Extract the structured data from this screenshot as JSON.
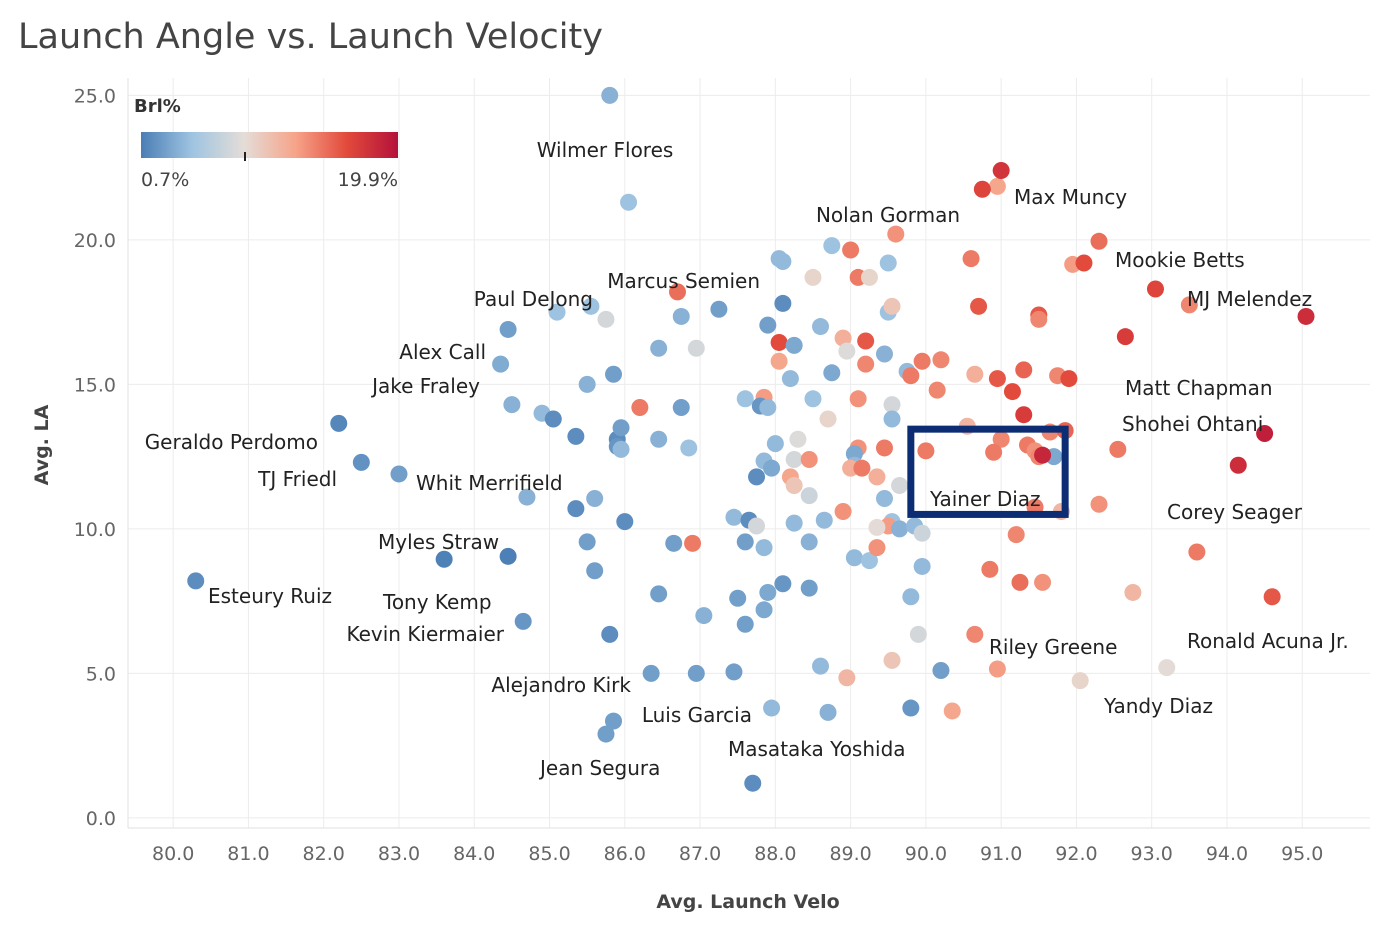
{
  "chart_data": {
    "type": "scatter",
    "title": "Launch Angle vs. Launch Velocity",
    "xlabel": "Avg. Launch Velo",
    "ylabel": "Avg. LA",
    "xlim": [
      79.4,
      95.9
    ],
    "ylim": [
      -0.35,
      25.6
    ],
    "x_ticks": [
      "80.0",
      "81.0",
      "82.0",
      "83.0",
      "84.0",
      "85.0",
      "86.0",
      "87.0",
      "88.0",
      "89.0",
      "90.0",
      "91.0",
      "92.0",
      "93.0",
      "94.0",
      "95.0"
    ],
    "y_ticks": [
      "0.0",
      "5.0",
      "10.0",
      "15.0",
      "20.0",
      "25.0"
    ],
    "grid": true,
    "color_legend": {
      "title": "Brl%",
      "min_label": "0.7%",
      "max_label": "19.9%",
      "min": 0.7,
      "max": 19.9,
      "placement": "top-left",
      "colors": [
        "#4a7eb5",
        "#9fc4e1",
        "#e4ddd8",
        "#f6a48a",
        "#e24a3b",
        "#b4123a"
      ]
    },
    "highlight": {
      "label": "Yainer Diaz",
      "x_range": [
        89.8,
        91.85
      ],
      "y_range": [
        10.5,
        13.45
      ],
      "color": "#0c2c74"
    },
    "labeled_players": [
      {
        "name": "Wilmer Flores",
        "x": 85.8,
        "y": 25.0,
        "brl": 3.5
      },
      {
        "name": "Max Muncy",
        "x": 91.0,
        "y": 22.4,
        "brl": 17.5
      },
      {
        "name": "Nolan Gorman",
        "x": 90.75,
        "y": 21.75,
        "brl": 16.5
      },
      {
        "name": "Mookie Betts",
        "x": 92.3,
        "y": 19.95,
        "brl": 14.5
      },
      {
        "name": "MJ Melendez",
        "x": 93.05,
        "y": 18.3,
        "brl": 16.5
      },
      {
        "name": "Marcus Semien",
        "x": 88.05,
        "y": 19.35,
        "brl": 4.0
      },
      {
        "name": "Paul DeJong",
        "x": 86.7,
        "y": 18.2,
        "brl": 14.5
      },
      {
        "name": "Alex Call",
        "x": 84.45,
        "y": 16.9,
        "brl": 2.5
      },
      {
        "name": "Jake Fraley",
        "x": 84.35,
        "y": 15.7,
        "brl": 3.2
      },
      {
        "name": "Matt Chapman",
        "x": 91.9,
        "y": 15.2,
        "brl": 16.0
      },
      {
        "name": "Shohei Ohtani",
        "x": 94.5,
        "y": 13.3,
        "brl": 19.0
      },
      {
        "name": "Geraldo Perdomo",
        "x": 82.2,
        "y": 13.65,
        "brl": 1.2
      },
      {
        "name": "TJ Friedl",
        "x": 82.5,
        "y": 12.3,
        "brl": 1.8
      },
      {
        "name": "Whit Merrifield",
        "x": 83.0,
        "y": 11.9,
        "brl": 2.5
      },
      {
        "name": "Yainer Diaz",
        "x": 91.55,
        "y": 12.55,
        "brl": 18.5
      },
      {
        "name": "Corey Seager",
        "x": 94.15,
        "y": 12.2,
        "brl": 18.0
      },
      {
        "name": "Myles Straw",
        "x": 84.45,
        "y": 9.05,
        "brl": 0.8
      },
      {
        "name": "Esteury Ruiz",
        "x": 80.3,
        "y": 8.2,
        "brl": 1.5
      },
      {
        "name": "Tony Kemp",
        "x": 83.6,
        "y": 8.95,
        "brl": 0.9
      },
      {
        "name": "Kevin Kiermaier",
        "x": 84.65,
        "y": 6.8,
        "brl": 2.0
      },
      {
        "name": "Riley Greene",
        "x": 90.65,
        "y": 6.35,
        "brl": 13.5
      },
      {
        "name": "Ronald Acuna Jr.",
        "x": 94.6,
        "y": 7.65,
        "brl": 15.5
      },
      {
        "name": "Alejandro Kirk",
        "x": 86.35,
        "y": 5.0,
        "brl": 2.5
      },
      {
        "name": "Yandy Diaz",
        "x": 93.2,
        "y": 5.2,
        "brl": 8.5
      },
      {
        "name": "Luis Garcia",
        "x": 87.95,
        "y": 3.8,
        "brl": 4.0
      },
      {
        "name": "Masataka Yoshida",
        "x": 88.7,
        "y": 3.65,
        "brl": 3.5
      },
      {
        "name": "Jean Segura",
        "x": 85.75,
        "y": 2.9,
        "brl": 2.5
      }
    ],
    "points": [
      [
        86.05,
        21.3,
        4.5
      ],
      [
        90.95,
        21.85,
        12
      ],
      [
        89.6,
        20.2,
        13
      ],
      [
        88.75,
        19.8,
        4.5
      ],
      [
        89.0,
        19.65,
        14
      ],
      [
        88.1,
        19.25,
        4
      ],
      [
        89.5,
        19.2,
        4.5
      ],
      [
        90.6,
        19.35,
        14
      ],
      [
        91.95,
        19.15,
        12.5
      ],
      [
        92.1,
        19.2,
        16
      ],
      [
        88.5,
        18.7,
        9
      ],
      [
        89.1,
        18.7,
        14
      ],
      [
        89.25,
        18.7,
        9
      ],
      [
        93.5,
        17.75,
        13.5
      ],
      [
        95.05,
        17.35,
        18
      ],
      [
        87.25,
        17.6,
        2.5
      ],
      [
        88.1,
        17.8,
        1.5
      ],
      [
        85.1,
        17.5,
        4.5
      ],
      [
        85.55,
        17.7,
        4.5
      ],
      [
        85.75,
        17.25,
        7.5
      ],
      [
        86.75,
        17.35,
        3.5
      ],
      [
        89.5,
        17.5,
        4.5
      ],
      [
        89.55,
        17.7,
        10
      ],
      [
        90.7,
        17.7,
        15.5
      ],
      [
        91.5,
        17.4,
        15.5
      ],
      [
        91.5,
        17.25,
        13.5
      ],
      [
        92.65,
        16.65,
        17
      ],
      [
        87.9,
        17.05,
        2.5
      ],
      [
        88.6,
        17.0,
        4
      ],
      [
        88.9,
        16.6,
        11.5
      ],
      [
        88.05,
        16.45,
        16
      ],
      [
        88.95,
        16.15,
        8
      ],
      [
        89.2,
        16.5,
        15.5
      ],
      [
        88.25,
        16.35,
        3
      ],
      [
        86.45,
        16.25,
        3.5
      ],
      [
        86.95,
        16.25,
        7.5
      ],
      [
        89.45,
        16.05,
        3.5
      ],
      [
        88.05,
        15.8,
        12
      ],
      [
        89.2,
        15.7,
        13.5
      ],
      [
        89.95,
        15.8,
        14
      ],
      [
        90.2,
        15.85,
        13.5
      ],
      [
        85.85,
        15.35,
        2.5
      ],
      [
        88.75,
        15.4,
        3
      ],
      [
        89.75,
        15.45,
        4
      ],
      [
        90.65,
        15.35,
        11.5
      ],
      [
        90.95,
        15.2,
        15.5
      ],
      [
        91.3,
        15.5,
        15
      ],
      [
        91.75,
        15.3,
        13.5
      ],
      [
        89.8,
        15.3,
        14
      ],
      [
        85.5,
        15.0,
        3.5
      ],
      [
        88.2,
        15.2,
        4
      ],
      [
        90.15,
        14.8,
        13.5
      ],
      [
        91.15,
        14.75,
        16
      ],
      [
        84.5,
        14.3,
        3.5
      ],
      [
        84.9,
        14.0,
        4
      ],
      [
        85.05,
        13.8,
        1.5
      ],
      [
        86.2,
        14.2,
        14
      ],
      [
        86.75,
        14.2,
        2.5
      ],
      [
        87.6,
        14.5,
        4.5
      ],
      [
        87.85,
        14.55,
        12.5
      ],
      [
        88.5,
        14.5,
        4.5
      ],
      [
        89.1,
        14.5,
        13
      ],
      [
        89.55,
        14.3,
        7.5
      ],
      [
        91.3,
        13.95,
        17
      ],
      [
        87.8,
        14.25,
        2
      ],
      [
        87.9,
        14.2,
        4
      ],
      [
        88.7,
        13.8,
        9
      ],
      [
        89.55,
        13.8,
        4
      ],
      [
        85.35,
        13.2,
        1.5
      ],
      [
        85.9,
        13.1,
        1.5
      ],
      [
        85.95,
        13.5,
        2.5
      ],
      [
        86.45,
        13.1,
        3.5
      ],
      [
        86.85,
        12.8,
        4.5
      ],
      [
        88.0,
        12.95,
        4
      ],
      [
        88.3,
        13.1,
        8
      ],
      [
        90.55,
        13.55,
        11
      ],
      [
        91.0,
        13.1,
        13.5
      ],
      [
        91.65,
        13.35,
        13.5
      ],
      [
        91.85,
        13.4,
        15
      ],
      [
        89.1,
        12.8,
        13
      ],
      [
        89.45,
        12.8,
        14
      ],
      [
        89.05,
        12.6,
        3
      ],
      [
        85.9,
        12.85,
        2
      ],
      [
        85.95,
        12.75,
        4
      ],
      [
        87.85,
        12.35,
        4
      ],
      [
        87.95,
        12.1,
        3
      ],
      [
        88.25,
        12.4,
        7.5
      ],
      [
        88.45,
        12.4,
        13
      ],
      [
        90.0,
        12.7,
        14
      ],
      [
        90.9,
        12.65,
        14
      ],
      [
        91.35,
        12.9,
        14
      ],
      [
        91.45,
        12.7,
        13
      ],
      [
        91.5,
        12.5,
        13.5
      ],
      [
        91.7,
        12.5,
        3
      ],
      [
        92.55,
        12.75,
        14
      ],
      [
        89.05,
        12.2,
        4
      ],
      [
        89.0,
        12.1,
        11.5
      ],
      [
        89.15,
        12.1,
        14
      ],
      [
        89.35,
        11.8,
        11.5
      ],
      [
        87.75,
        11.8,
        1.5
      ],
      [
        88.2,
        11.8,
        12
      ],
      [
        88.25,
        11.5,
        10
      ],
      [
        88.45,
        11.15,
        7
      ],
      [
        89.65,
        11.5,
        7.5
      ],
      [
        89.45,
        11.05,
        4
      ],
      [
        88.9,
        10.6,
        13
      ],
      [
        88.65,
        10.3,
        4
      ],
      [
        89.55,
        10.25,
        4.5
      ],
      [
        87.45,
        10.4,
        4
      ],
      [
        87.65,
        10.3,
        1.5
      ],
      [
        87.75,
        10.1,
        7.5
      ],
      [
        88.25,
        10.2,
        4
      ],
      [
        89.5,
        10.1,
        12.5
      ],
      [
        89.65,
        10.0,
        3.5
      ],
      [
        89.35,
        10.05,
        8.5
      ],
      [
        89.85,
        10.1,
        4
      ],
      [
        89.95,
        9.85,
        7
      ],
      [
        91.2,
        9.8,
        13.5
      ],
      [
        91.45,
        10.75,
        14
      ],
      [
        91.8,
        10.6,
        11
      ],
      [
        92.3,
        10.85,
        13
      ],
      [
        85.6,
        11.05,
        3.5
      ],
      [
        84.7,
        11.1,
        3.5
      ],
      [
        85.35,
        10.7,
        1.5
      ],
      [
        86.0,
        10.25,
        1.5
      ],
      [
        85.5,
        9.55,
        2.5
      ],
      [
        86.65,
        9.5,
        2.5
      ],
      [
        86.9,
        9.5,
        14
      ],
      [
        87.6,
        9.55,
        2.5
      ],
      [
        87.85,
        9.35,
        4
      ],
      [
        88.45,
        9.55,
        3.5
      ],
      [
        89.05,
        9.0,
        4
      ],
      [
        89.25,
        8.9,
        4.5
      ],
      [
        89.35,
        9.35,
        13
      ],
      [
        89.95,
        8.7,
        4
      ],
      [
        93.6,
        9.2,
        14
      ],
      [
        85.6,
        8.55,
        2.5
      ],
      [
        88.1,
        8.1,
        2
      ],
      [
        88.45,
        7.95,
        2.5
      ],
      [
        87.9,
        7.8,
        3
      ],
      [
        86.45,
        7.75,
        2.5
      ],
      [
        87.5,
        7.6,
        2.5
      ],
      [
        89.8,
        7.65,
        4
      ],
      [
        90.85,
        8.6,
        14
      ],
      [
        91.25,
        8.15,
        14.5
      ],
      [
        91.55,
        8.15,
        13
      ],
      [
        92.75,
        7.8,
        11
      ],
      [
        87.05,
        7.0,
        3.5
      ],
      [
        87.85,
        7.2,
        3
      ],
      [
        87.6,
        6.7,
        2.5
      ],
      [
        85.8,
        6.35,
        1.5
      ],
      [
        89.9,
        6.35,
        7.5
      ],
      [
        89.55,
        5.45,
        10
      ],
      [
        88.6,
        5.25,
        4
      ],
      [
        87.45,
        5.05,
        2.5
      ],
      [
        90.2,
        5.1,
        2.5
      ],
      [
        90.95,
        5.15,
        12.5
      ],
      [
        88.95,
        4.85,
        11
      ],
      [
        86.95,
        5.0,
        2.5
      ],
      [
        92.05,
        4.75,
        9
      ],
      [
        89.8,
        3.8,
        2
      ],
      [
        90.35,
        3.7,
        12
      ],
      [
        85.85,
        3.35,
        2.5
      ],
      [
        87.7,
        1.2,
        1.5
      ]
    ]
  }
}
